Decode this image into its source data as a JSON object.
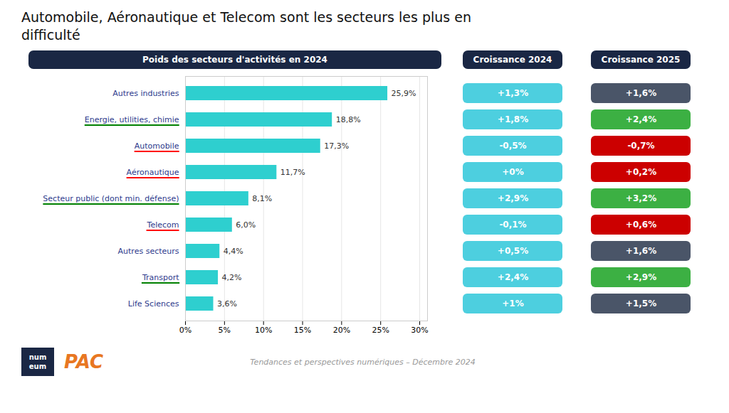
{
  "chart_data": {
    "type": "bar",
    "orientation": "horizontal",
    "title": "Automobile, Aéronautique et Telecom sont les secteurs les plus en\ndifficulté",
    "subtitle": "Tendances et perspectives numériques – Décembre 2024",
    "header": "Poids des secteurs d'activités en 2024",
    "categories": [
      "Autres industries",
      "Energie, utilities, chimie",
      "Automobile",
      "Aéronautique",
      "Secteur public (dont min. défense)",
      "Telecom",
      "Autres secteurs",
      "Transport",
      "Life Sciences"
    ],
    "values": [
      25.9,
      18.8,
      17.3,
      11.7,
      8.1,
      6.0,
      4.4,
      4.2,
      3.6
    ],
    "value_labels": [
      "25,9%",
      "18,8%",
      "17,3%",
      "11,7%",
      "8,1%",
      "6,0%",
      "4,4%",
      "4,2%",
      "3,6%"
    ],
    "data_labels": true,
    "color": "#2ECFCF",
    "xlim": [
      0,
      31
    ],
    "xticks": [
      {
        "value": 0,
        "label": "0%"
      },
      {
        "value": 5,
        "label": "5%"
      },
      {
        "value": 10,
        "label": "10%"
      },
      {
        "value": 15,
        "label": "15%"
      },
      {
        "value": 20,
        "label": "20%"
      },
      {
        "value": 25,
        "label": "25%"
      },
      {
        "value": 30,
        "label": "30%"
      }
    ],
    "grid": true,
    "underline_colors": [
      null,
      "green",
      "red",
      "red",
      "green",
      "red",
      null,
      "green",
      null
    ],
    "columns": [
      {
        "name": "Croissance 2024",
        "labels": [
          "+1,3%",
          "+1,8%",
          "-0,5%",
          "+0%",
          "+2,9%",
          "-0,1%",
          "+0,5%",
          "+2,4%",
          "+1%"
        ],
        "colors": [
          "#4DCFDF",
          "#4DCFDF",
          "#4DCFDF",
          "#4DCFDF",
          "#4DCFDF",
          "#4DCFDF",
          "#4DCFDF",
          "#4DCFDF",
          "#4DCFDF"
        ]
      },
      {
        "name": "Croissance 2025",
        "labels": [
          "+1,6%",
          "+2,4%",
          "-0,7%",
          "+0,2%",
          "+3,2%",
          "+0,6%",
          "+1,6%",
          "+2,9%",
          "+1,5%"
        ],
        "colors": [
          "#4A5568",
          "#3CB043",
          "#CC0000",
          "#CC0000",
          "#3CB043",
          "#CC0000",
          "#4A5568",
          "#3CB043",
          "#4A5568"
        ]
      }
    ],
    "logos": [
      "num",
      "eum",
      "PAC"
    ]
  }
}
